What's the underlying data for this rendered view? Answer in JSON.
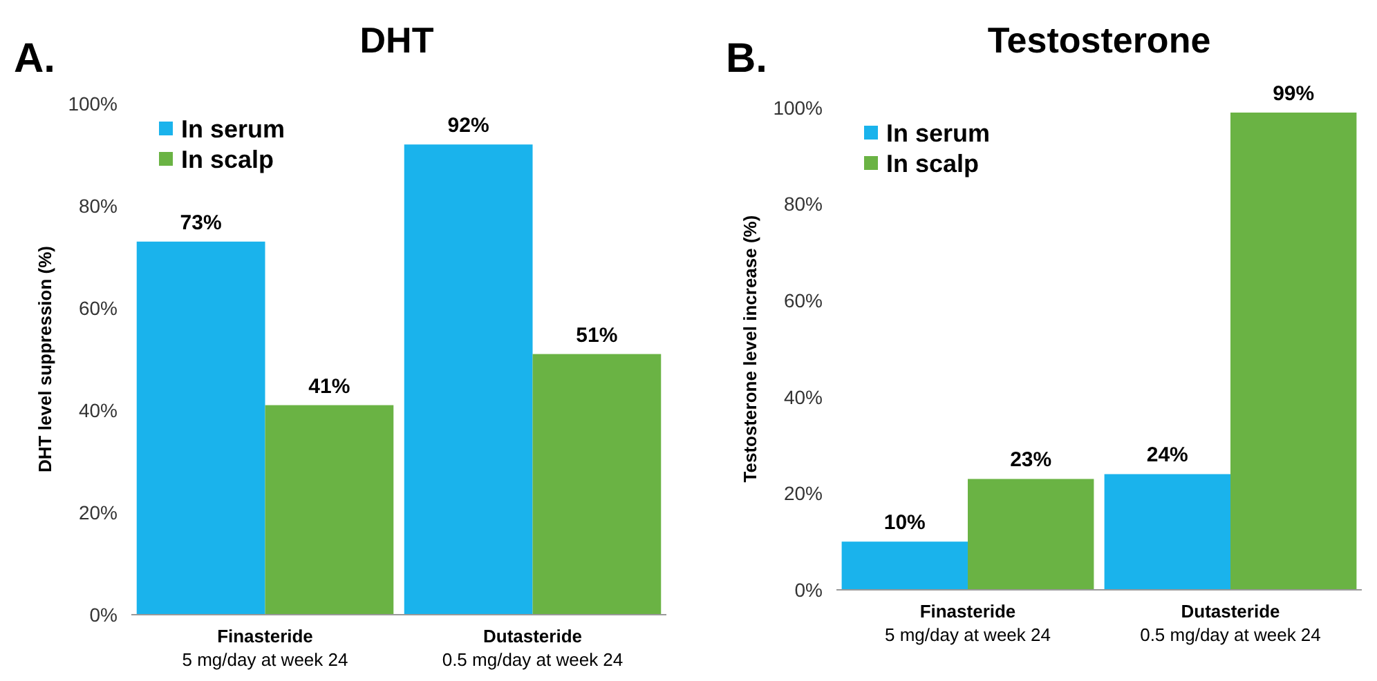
{
  "chart_data": [
    {
      "type": "bar",
      "title": "DHT",
      "ylabel": "DHT level suppression (%)",
      "annotations": [
        "A."
      ],
      "categories": [
        "Finasteride\n5 mg/day at week 24",
        "Dutasteride\n0.5 mg/day at week 24"
      ],
      "ylim": [
        0,
        100
      ],
      "yticks": [
        {
          "value": 0,
          "label": "0%"
        },
        {
          "value": 20,
          "label": "20%"
        },
        {
          "value": 40,
          "label": "40%"
        },
        {
          "value": 60,
          "label": "60%"
        },
        {
          "value": 80,
          "label": "80%"
        },
        {
          "value": 100,
          "label": "100%"
        }
      ],
      "legend": "top left",
      "grid": false,
      "series": [
        {
          "name": "In serum",
          "color": "#1ab3ec",
          "values": [
            73,
            92
          ],
          "value_labels": [
            "73%",
            "92%"
          ]
        },
        {
          "name": "In scalp",
          "color": "#6ab344",
          "values": [
            41,
            51
          ],
          "value_labels": [
            "41%",
            "51%"
          ]
        }
      ]
    },
    {
      "type": "bar",
      "title": "Testosterone",
      "ylabel": "Testosterone level increase (%)",
      "annotations": [
        "B."
      ],
      "categories": [
        "Finasteride\n5 mg/day at week 24",
        "Dutasteride\n0.5 mg/day at week 24"
      ],
      "ylim": [
        0,
        100
      ],
      "yticks": [
        {
          "value": 0,
          "label": "0%"
        },
        {
          "value": 20,
          "label": "20%"
        },
        {
          "value": 40,
          "label": "40%"
        },
        {
          "value": 60,
          "label": "60%"
        },
        {
          "value": 80,
          "label": "80%"
        },
        {
          "value": 100,
          "label": "100%"
        }
      ],
      "legend": "top left",
      "grid": false,
      "series": [
        {
          "name": "In serum",
          "color": "#1ab3ec",
          "values": [
            10,
            24
          ],
          "value_labels": [
            "10%",
            "24%"
          ]
        },
        {
          "name": "In scalp",
          "color": "#6ab344",
          "values": [
            23,
            99
          ],
          "value_labels": [
            "23%",
            "99%"
          ]
        }
      ]
    }
  ]
}
